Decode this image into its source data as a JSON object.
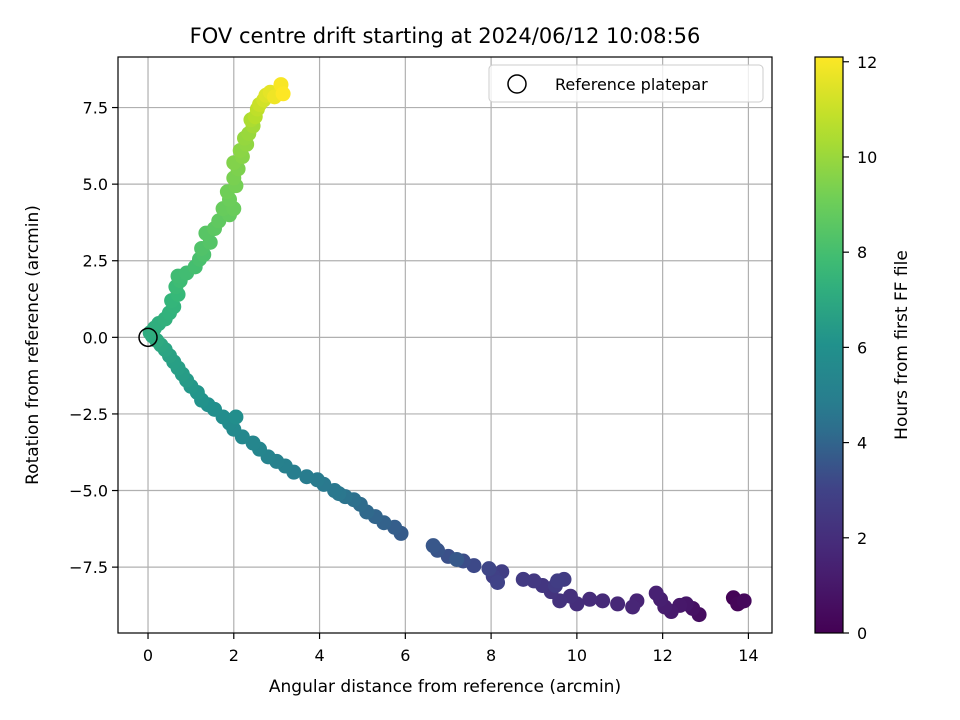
{
  "chart_data": {
    "type": "scatter",
    "title": "FOV centre drift starting at 2024/06/12 10:08:56",
    "xlabel": "Angular distance from reference (arcmin)",
    "ylabel": "Rotation from reference (arcmin)",
    "xlim": [
      -0.7,
      14.55
    ],
    "ylim": [
      -9.65,
      9.15
    ],
    "xticks": [
      0,
      2,
      4,
      6,
      8,
      10,
      12,
      14
    ],
    "yticks": [
      -7.5,
      -5.0,
      -2.5,
      0.0,
      2.5,
      5.0,
      7.5
    ],
    "ytick_labels": [
      "−7.5",
      "−5.0",
      "−2.5",
      "0.0",
      "2.5",
      "5.0",
      "7.5"
    ],
    "grid": true,
    "colormap": "viridis",
    "colorbar": {
      "label": "Hours from first FF file",
      "range": [
        0,
        12.1
      ],
      "ticks": [
        0,
        2,
        4,
        6,
        8,
        10,
        12
      ]
    },
    "legend": {
      "position": "top-right",
      "entries": [
        "Reference platepar"
      ]
    },
    "reference_point": {
      "x": 0,
      "y": 0
    },
    "series": [
      {
        "points": [
          [
            13.8,
            -8.65,
            0.0
          ],
          [
            13.65,
            -8.5,
            0.1
          ],
          [
            13.75,
            -8.7,
            0.2
          ],
          [
            13.9,
            -8.6,
            0.3
          ],
          [
            12.85,
            -9.05,
            0.5
          ],
          [
            12.7,
            -8.85,
            0.7
          ],
          [
            12.55,
            -8.7,
            0.9
          ],
          [
            12.4,
            -8.75,
            1.0
          ],
          [
            12.2,
            -8.95,
            1.1
          ],
          [
            12.05,
            -8.8,
            1.2
          ],
          [
            11.95,
            -8.55,
            1.3
          ],
          [
            11.85,
            -8.35,
            1.4
          ],
          [
            11.4,
            -8.6,
            1.5
          ],
          [
            11.3,
            -8.8,
            1.6
          ],
          [
            10.95,
            -8.7,
            1.7
          ],
          [
            10.6,
            -8.6,
            1.8
          ],
          [
            10.3,
            -8.55,
            1.9
          ],
          [
            10.0,
            -8.7,
            2.0
          ],
          [
            9.85,
            -8.45,
            2.1
          ],
          [
            9.6,
            -8.6,
            2.2
          ],
          [
            9.4,
            -8.3,
            2.3
          ],
          [
            9.2,
            -8.1,
            2.4
          ],
          [
            9.0,
            -7.95,
            2.5
          ],
          [
            8.75,
            -7.9,
            2.6
          ],
          [
            9.5,
            -8.1,
            2.65
          ],
          [
            9.7,
            -7.9,
            2.7
          ],
          [
            9.55,
            -7.95,
            2.75
          ],
          [
            8.25,
            -7.65,
            2.8
          ],
          [
            8.05,
            -7.8,
            2.9
          ],
          [
            8.15,
            -8.0,
            3.0
          ],
          [
            7.95,
            -7.55,
            3.1
          ],
          [
            7.6,
            -7.45,
            3.2
          ],
          [
            7.35,
            -7.3,
            3.3
          ],
          [
            7.0,
            -7.15,
            3.4
          ],
          [
            6.75,
            -6.95,
            3.5
          ],
          [
            6.65,
            -6.8,
            3.6
          ],
          [
            7.2,
            -7.25,
            3.65
          ],
          [
            5.9,
            -6.4,
            3.7
          ],
          [
            5.75,
            -6.2,
            3.8
          ],
          [
            5.5,
            -6.05,
            3.9
          ],
          [
            5.3,
            -5.85,
            4.0
          ],
          [
            5.1,
            -5.7,
            4.1
          ],
          [
            4.95,
            -5.45,
            4.2
          ],
          [
            4.8,
            -5.3,
            4.3
          ],
          [
            4.6,
            -5.2,
            4.4
          ],
          [
            4.45,
            -5.1,
            4.5
          ],
          [
            4.35,
            -5.0,
            4.55
          ],
          [
            4.1,
            -4.8,
            4.6
          ],
          [
            3.95,
            -4.65,
            4.7
          ],
          [
            3.7,
            -4.55,
            4.8
          ],
          [
            3.4,
            -4.4,
            4.9
          ],
          [
            3.2,
            -4.2,
            5.0
          ],
          [
            3.0,
            -4.05,
            5.1
          ],
          [
            2.8,
            -3.9,
            5.2
          ],
          [
            2.6,
            -3.65,
            5.3
          ],
          [
            2.45,
            -3.45,
            5.4
          ],
          [
            2.2,
            -3.25,
            5.5
          ],
          [
            2.0,
            -3.0,
            5.6
          ],
          [
            1.9,
            -2.8,
            5.7
          ],
          [
            1.75,
            -2.6,
            5.8
          ],
          [
            2.05,
            -2.6,
            5.85
          ],
          [
            1.55,
            -2.35,
            5.9
          ],
          [
            1.4,
            -2.2,
            6.0
          ],
          [
            1.25,
            -2.05,
            6.1
          ],
          [
            1.15,
            -1.8,
            6.2
          ],
          [
            1.0,
            -1.6,
            6.3
          ],
          [
            0.9,
            -1.4,
            6.4
          ],
          [
            0.8,
            -1.2,
            6.5
          ],
          [
            0.7,
            -1.0,
            6.55
          ],
          [
            0.6,
            -0.8,
            6.6
          ],
          [
            0.5,
            -0.6,
            6.7
          ],
          [
            0.4,
            -0.4,
            6.8
          ],
          [
            0.3,
            -0.25,
            6.9
          ],
          [
            0.2,
            -0.1,
            7.0
          ],
          [
            0.1,
            0.05,
            7.05
          ],
          [
            0.05,
            0.15,
            7.1
          ],
          [
            0.15,
            0.3,
            7.15
          ],
          [
            0.25,
            0.45,
            7.2
          ],
          [
            0.4,
            0.6,
            7.3
          ],
          [
            0.5,
            0.8,
            7.35
          ],
          [
            0.6,
            1.0,
            7.4
          ],
          [
            0.55,
            1.2,
            7.5
          ],
          [
            0.7,
            1.4,
            7.6
          ],
          [
            0.65,
            1.65,
            7.7
          ],
          [
            0.75,
            1.85,
            7.8
          ],
          [
            0.7,
            2.0,
            7.85
          ],
          [
            0.9,
            2.1,
            7.9
          ],
          [
            1.1,
            2.3,
            8.0
          ],
          [
            1.2,
            2.55,
            8.1
          ],
          [
            1.3,
            2.7,
            8.2
          ],
          [
            1.25,
            2.9,
            8.3
          ],
          [
            1.45,
            3.1,
            8.4
          ],
          [
            1.35,
            3.4,
            8.5
          ],
          [
            1.55,
            3.55,
            8.6
          ],
          [
            1.65,
            3.8,
            8.7
          ],
          [
            1.9,
            4.0,
            8.8
          ],
          [
            1.75,
            4.2,
            8.9
          ],
          [
            2.0,
            4.2,
            8.95
          ],
          [
            1.9,
            4.5,
            9.0
          ],
          [
            1.85,
            4.75,
            9.1
          ],
          [
            2.05,
            4.95,
            9.2
          ],
          [
            2.0,
            5.2,
            9.3
          ],
          [
            2.1,
            5.5,
            9.4
          ],
          [
            2.0,
            5.7,
            9.5
          ],
          [
            2.2,
            5.9,
            9.6
          ],
          [
            2.15,
            6.1,
            9.7
          ],
          [
            2.3,
            6.3,
            9.8
          ],
          [
            2.25,
            6.5,
            9.9
          ],
          [
            2.35,
            6.65,
            10.0
          ],
          [
            2.45,
            6.9,
            10.2
          ],
          [
            2.4,
            7.1,
            10.4
          ],
          [
            2.5,
            7.2,
            10.6
          ],
          [
            2.55,
            7.45,
            10.8
          ],
          [
            2.6,
            7.6,
            11.0
          ],
          [
            2.7,
            7.75,
            11.2
          ],
          [
            2.75,
            7.9,
            11.4
          ],
          [
            2.85,
            8.0,
            11.6
          ],
          [
            2.95,
            7.85,
            11.8
          ],
          [
            3.1,
            8.25,
            12.0
          ],
          [
            3.15,
            7.95,
            12.1
          ]
        ]
      }
    ]
  }
}
